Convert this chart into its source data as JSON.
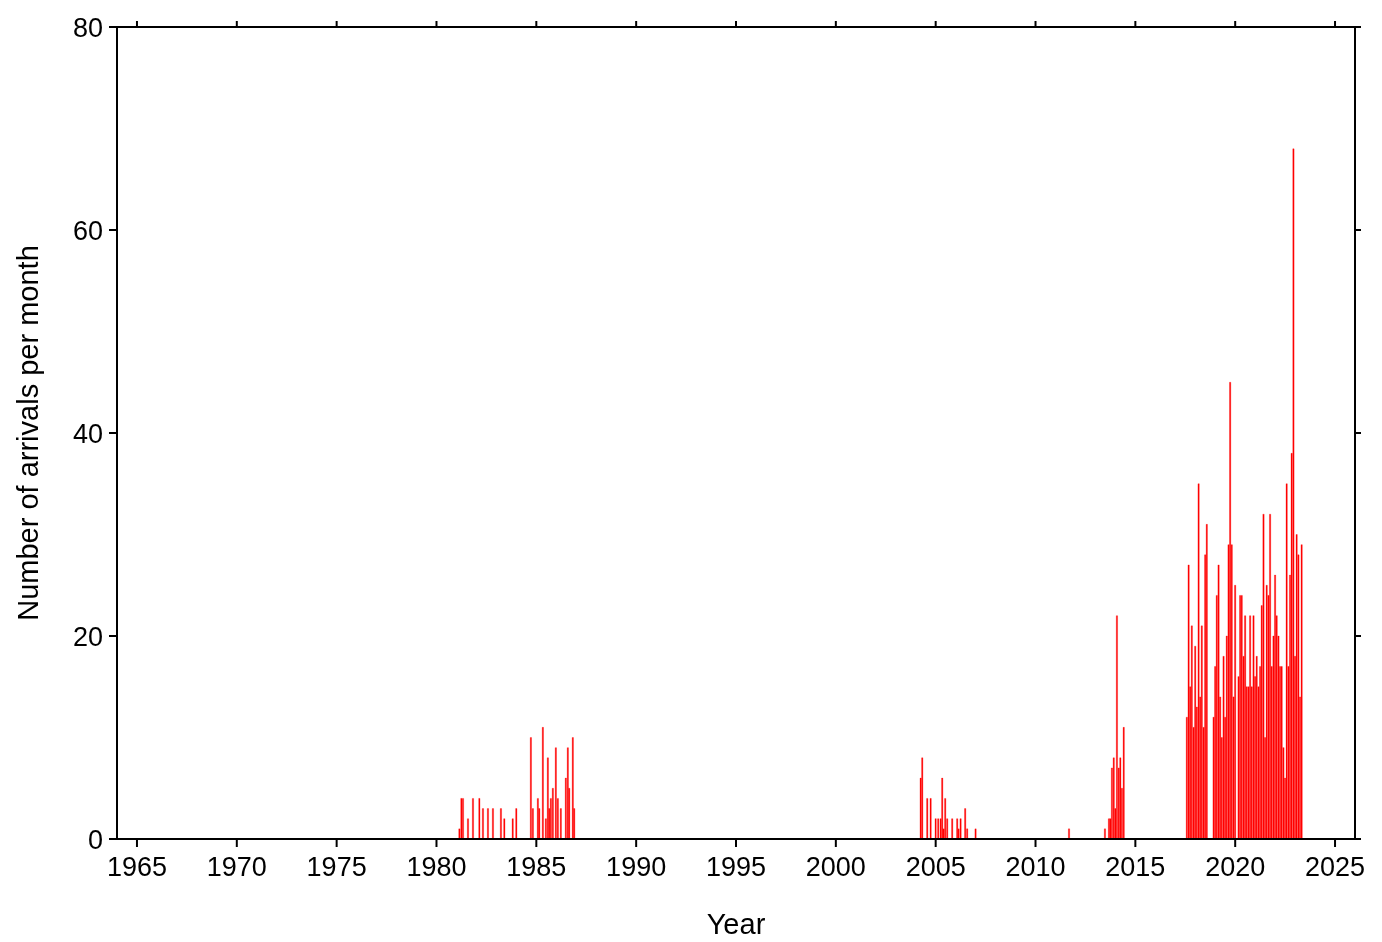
{
  "chart_data": {
    "type": "bar",
    "xlabel": "Year",
    "ylabel": "Number of arrivals per month",
    "x": [
      1981.15,
      1981.25,
      1981.33,
      1981.58,
      1981.83,
      1982.15,
      1982.33,
      1982.58,
      1982.83,
      1983.23,
      1983.4,
      1983.82,
      1984.0,
      1984.73,
      1984.83,
      1985.08,
      1985.15,
      1985.33,
      1985.48,
      1985.58,
      1985.65,
      1985.73,
      1985.83,
      1985.98,
      1986.08,
      1986.23,
      1986.48,
      1986.58,
      1986.65,
      1986.83,
      1986.9,
      2004.25,
      2004.33,
      2004.58,
      2004.75,
      2005.0,
      2005.13,
      2005.25,
      2005.33,
      2005.4,
      2005.48,
      2005.58,
      2005.83,
      2006.08,
      2006.15,
      2006.25,
      2006.48,
      2006.58,
      2007.0,
      2011.68,
      2013.48,
      2013.68,
      2013.75,
      2013.83,
      2013.92,
      2014.0,
      2014.08,
      2014.17,
      2014.25,
      2014.33,
      2014.42,
      2017.58,
      2017.67,
      2017.75,
      2017.83,
      2017.92,
      2018.0,
      2018.08,
      2018.17,
      2018.25,
      2018.33,
      2018.42,
      2018.5,
      2018.58,
      2018.92,
      2019.0,
      2019.08,
      2019.17,
      2019.25,
      2019.33,
      2019.42,
      2019.5,
      2019.58,
      2019.67,
      2019.75,
      2019.83,
      2019.92,
      2020.0,
      2020.17,
      2020.25,
      2020.33,
      2020.42,
      2020.5,
      2020.58,
      2020.67,
      2020.75,
      2020.83,
      2020.92,
      2021.0,
      2021.08,
      2021.17,
      2021.25,
      2021.33,
      2021.42,
      2021.5,
      2021.58,
      2021.67,
      2021.75,
      2021.83,
      2021.92,
      2022.0,
      2022.08,
      2022.17,
      2022.25,
      2022.33,
      2022.42,
      2022.5,
      2022.58,
      2022.67,
      2022.75,
      2022.83,
      2022.92,
      2023.0,
      2023.08,
      2023.17,
      2023.25,
      2023.33
    ],
    "values": [
      1,
      4,
      4,
      2,
      4,
      4,
      3,
      3,
      3,
      3,
      2,
      2,
      3,
      10,
      3,
      4,
      3,
      11,
      2,
      8,
      3,
      4,
      5,
      9,
      4,
      3,
      6,
      9,
      5,
      10,
      3,
      6,
      8,
      4,
      4,
      2,
      2,
      2,
      6,
      1,
      4,
      2,
      2,
      2,
      1,
      2,
      3,
      1,
      1,
      1,
      1,
      2,
      2,
      7,
      8,
      3,
      22,
      7,
      8,
      5,
      11,
      12,
      27,
      15,
      21,
      11,
      19,
      13,
      35,
      14,
      21,
      11,
      28,
      31,
      12,
      17,
      24,
      27,
      14,
      10,
      18,
      12,
      20,
      29,
      45,
      29,
      14,
      25,
      16,
      24,
      24,
      18,
      22,
      15,
      15,
      22,
      15,
      22,
      16,
      18,
      15,
      17,
      23,
      32,
      10,
      25,
      24,
      32,
      17,
      20,
      26,
      22,
      20,
      17,
      17,
      9,
      6,
      35,
      17,
      26,
      38,
      68,
      18,
      30,
      28,
      14,
      29
    ],
    "color": "#ff0000",
    "xlim": [
      1964,
      2026
    ],
    "xticks": [
      1965,
      1970,
      1975,
      1980,
      1985,
      1990,
      1995,
      2000,
      2005,
      2010,
      2015,
      2020,
      2025
    ],
    "ylim": [
      0,
      80
    ],
    "yticks": [
      0,
      20,
      40,
      60,
      80
    ]
  }
}
